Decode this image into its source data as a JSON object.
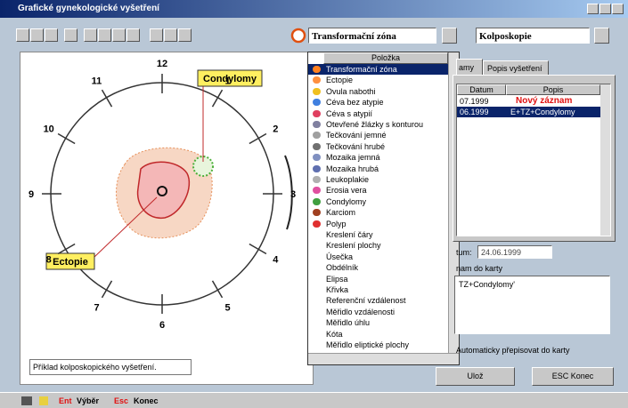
{
  "window": {
    "title": "Grafické gynekologické vyšetření"
  },
  "toolbar": {
    "tool_combo": "Transformační zóna",
    "mode_combo": "Kolposkopie"
  },
  "drawing": {
    "clock_labels": [
      "12",
      "1",
      "2",
      "3",
      "4",
      "5",
      "6",
      "7",
      "8",
      "9",
      "10",
      "11"
    ],
    "labels": [
      "Condylomy",
      "Ectopie"
    ],
    "caption": "Příklad kolposkopického vyšetření."
  },
  "dropdown": {
    "header": "Položka",
    "items": [
      "Transformační zóna",
      "Ectopie",
      "Ovula nabothi",
      "Céva bez atypie",
      "Céva s atypií",
      "Otevřené žlázky s konturou",
      "Tečkování jemné",
      "Tečkování hrubé",
      "Mozaika jemná",
      "Mozaika hrubá",
      "Leukoplakie",
      "Erosia vera",
      "Condylomy",
      "Karciom",
      "Polyp",
      "Kreslení čáry",
      "Kreslení plochy",
      "Úsečka",
      "Obdélník",
      "Elipsa",
      "Křivka",
      "Referenční vzdálenost",
      "Měřidlo vzdálenosti",
      "Měřidlo úhlu",
      "Kóta",
      "Měřidlo eliptické plochy"
    ]
  },
  "panel": {
    "tabs": [
      "amy",
      "Popis vyšetření"
    ],
    "table": {
      "headers": [
        "Datum",
        "Popis"
      ],
      "rows": [
        [
          "07.1999",
          "Nový záznam"
        ],
        [
          "06.1999",
          "E+TZ+Condylomy"
        ]
      ]
    },
    "date_label": "tum:",
    "date_value": "24.06.1999",
    "card_label": "nam do karty",
    "card_text": "TZ+Condylomy'",
    "auto_label": "Automaticky přepisovat do karty",
    "buttons": [
      "Ulož",
      "ESC Konec"
    ]
  },
  "status": {
    "items": [
      "Ent",
      "Výběr",
      "Esc",
      "Konec"
    ]
  }
}
